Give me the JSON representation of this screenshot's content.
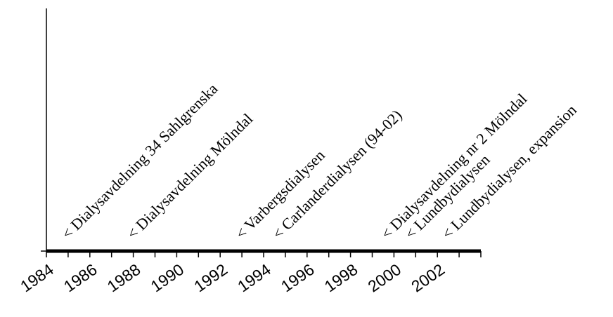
{
  "chart_data": {
    "type": "timeline",
    "xlim": [
      1984,
      2004
    ],
    "x_ticks": [
      1984,
      1986,
      1988,
      1990,
      1992,
      1994,
      1996,
      1998,
      2000,
      2002
    ],
    "events": [
      {
        "x": 1985.0,
        "label": "< Dialysavdelning 34 Sahlgrenska"
      },
      {
        "x": 1988.0,
        "label": "< Dialysavdelning Mölndal"
      },
      {
        "x": 1993.0,
        "label": "< Varbergsdialysen"
      },
      {
        "x": 1994.7,
        "label": "< Carlanderdialysen (94-02)"
      },
      {
        "x": 1999.7,
        "label": "< Dialysavdelning nr 2 Mölndal"
      },
      {
        "x": 2000.8,
        "label": "< Lundbydialysen"
      },
      {
        "x": 2002.5,
        "label": "< Lundbydialysen, expansion"
      }
    ],
    "grid": false,
    "legend": "none",
    "colors": {
      "axis": "#000000",
      "text": "#000000"
    }
  }
}
